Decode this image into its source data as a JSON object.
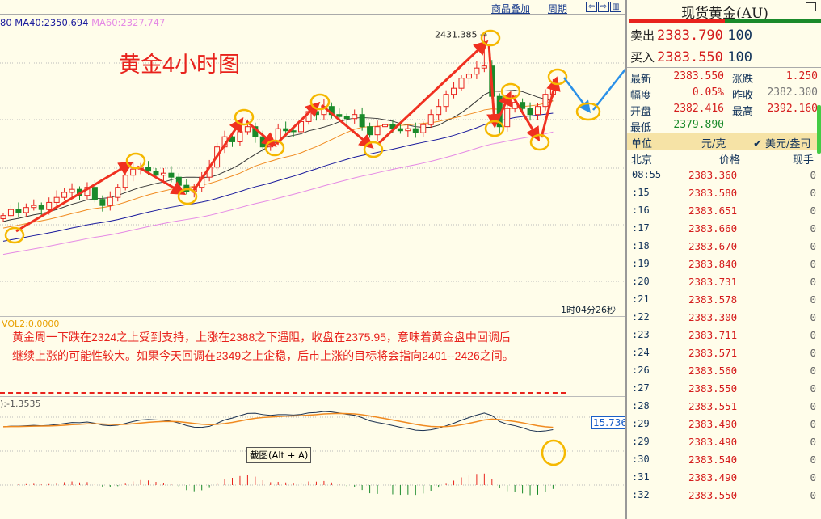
{
  "toolbar": {
    "overlay_label": "商品叠加",
    "period_label": "周期",
    "icons": [
      "arrow-left-icon",
      "arrow-right-icon",
      "split-layout-icon"
    ]
  },
  "ma_labels": {
    "ma20_tail": "80",
    "ma40": "MA40:2350.694",
    "ma60": "MA60:2327.747",
    "ma40_color": "#1a1a9c",
    "ma60_color": "#e58ae5"
  },
  "annotation_title": "黄金4小时图",
  "high_label": "2431.385",
  "timer": "1时04分26秒",
  "vol_label": "VOL2:0.0000",
  "comment_lines": [
    "黄金周一下跌在2324之上受到支持，上涨在2388之下遇阻，收盘在2375.95，意味着黄金盘中回调后",
    "继续上涨的可能性较大。如果今天回调在2349之上企稳，后市上涨的目标将会指向2401--2426之间。"
  ],
  "macd_label": "):-1.3535",
  "macd_value": "15.736",
  "tooltip": "截图(Alt + A)",
  "colors": {
    "up": "#e8221c",
    "down": "#1a8a2a",
    "annotation_arrow": "#f03020",
    "annotation_circle": "#f5b800",
    "forecast_arrow": "#2a90e8"
  },
  "chart_data": {
    "type": "candlestick",
    "note_symbol": "现货黄金(AU)",
    "closes": [
      2252,
      2258,
      2255,
      2260,
      2262,
      2258,
      2265,
      2270,
      2275,
      2278,
      2272,
      2280,
      2268,
      2262,
      2270,
      2280,
      2292,
      2298,
      2300,
      2296,
      2292,
      2294,
      2290,
      2282,
      2276,
      2280,
      2290,
      2300,
      2320,
      2330,
      2325,
      2335,
      2340,
      2330,
      2320,
      2325,
      2338,
      2336,
      2335,
      2345,
      2355,
      2352,
      2360,
      2352,
      2350,
      2348,
      2352,
      2340,
      2332,
      2340,
      2342,
      2338,
      2336,
      2338,
      2334,
      2342,
      2352,
      2360,
      2372,
      2378,
      2388,
      2392,
      2398,
      2400,
      2370,
      2340,
      2358,
      2364,
      2358,
      2352,
      2360,
      2372,
      2380
    ],
    "high": 2431.385
  },
  "quote": {
    "title": "现货黄金(AU)",
    "sell_label": "卖出",
    "sell_price": "2383.790",
    "sell_qty": "100",
    "buy_label": "买入",
    "buy_price": "2383.550",
    "buy_qty": "100",
    "stats": [
      {
        "label": "最新",
        "value": "2383.550",
        "color": "#d41c1c",
        "label2": "涨跌",
        "value2": "1.250",
        "color2": "#d41c1c"
      },
      {
        "label": "幅度",
        "value": "0.05%",
        "color": "#d41c1c",
        "label2": "昨收",
        "value2": "2382.300",
        "color2": "#777"
      },
      {
        "label": "开盘",
        "value": "2382.416",
        "color": "#d41c1c",
        "label2": "最高",
        "value2": "2392.160",
        "color2": "#d41c1c"
      },
      {
        "label": "最低",
        "value": "2379.890",
        "color": "#1a8a2a"
      }
    ],
    "unit_label": "单位",
    "unit_option1": "元/克",
    "unit_option2": "✔ 美元/盎司",
    "headers": {
      "time": "北京",
      "price": "价格",
      "qty": "现手"
    },
    "ticks": [
      {
        "t": "08:55",
        "p": "2383.360",
        "q": "0"
      },
      {
        "t": ":15",
        "p": "2383.580",
        "q": "0"
      },
      {
        "t": ":16",
        "p": "2383.651",
        "q": "0"
      },
      {
        "t": ":17",
        "p": "2383.660",
        "q": "0"
      },
      {
        "t": ":18",
        "p": "2383.670",
        "q": "0"
      },
      {
        "t": ":19",
        "p": "2383.840",
        "q": "0"
      },
      {
        "t": ":20",
        "p": "2383.731",
        "q": "0"
      },
      {
        "t": ":21",
        "p": "2383.578",
        "q": "0"
      },
      {
        "t": ":22",
        "p": "2383.300",
        "q": "0"
      },
      {
        "t": ":23",
        "p": "2383.711",
        "q": "0"
      },
      {
        "t": ":24",
        "p": "2383.571",
        "q": "0"
      },
      {
        "t": ":26",
        "p": "2383.560",
        "q": "0"
      },
      {
        "t": ":27",
        "p": "2383.550",
        "q": "0"
      },
      {
        "t": ":28",
        "p": "2383.551",
        "q": "0"
      },
      {
        "t": ":29",
        "p": "2383.490",
        "q": "0"
      },
      {
        "t": ":29",
        "p": "2383.490",
        "q": "0"
      },
      {
        "t": ":30",
        "p": "2383.540",
        "q": "0"
      },
      {
        "t": ":31",
        "p": "2383.490",
        "q": "0"
      },
      {
        "t": ":32",
        "p": "2383.550",
        "q": "0"
      }
    ]
  }
}
